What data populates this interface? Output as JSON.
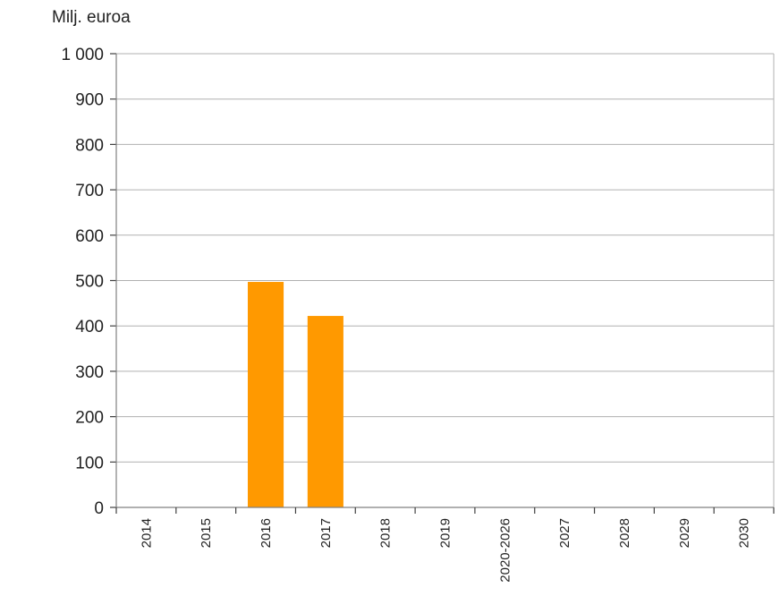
{
  "chart_data": {
    "type": "bar",
    "unit_label": "Milj. euroa",
    "categories": [
      "2014",
      "2015",
      "2016",
      "2017",
      "2018",
      "2019",
      "2020-2026",
      "2027",
      "2028",
      "2029",
      "2030"
    ],
    "values": [
      0,
      0,
      497,
      422,
      0,
      0,
      0,
      0,
      0,
      0,
      0
    ],
    "ylim": [
      0,
      1000
    ],
    "yticks": [
      0,
      100,
      200,
      300,
      400,
      500,
      600,
      700,
      800,
      900,
      1000
    ],
    "ytick_labels": [
      "0",
      "100",
      "200",
      "300",
      "400",
      "500",
      "600",
      "700",
      "800",
      "900",
      "1 000"
    ],
    "grid": true,
    "legend": "none",
    "colors": {
      "bar": "#FF9900",
      "grid": "#B0B0B0",
      "axis": "#808080"
    }
  }
}
